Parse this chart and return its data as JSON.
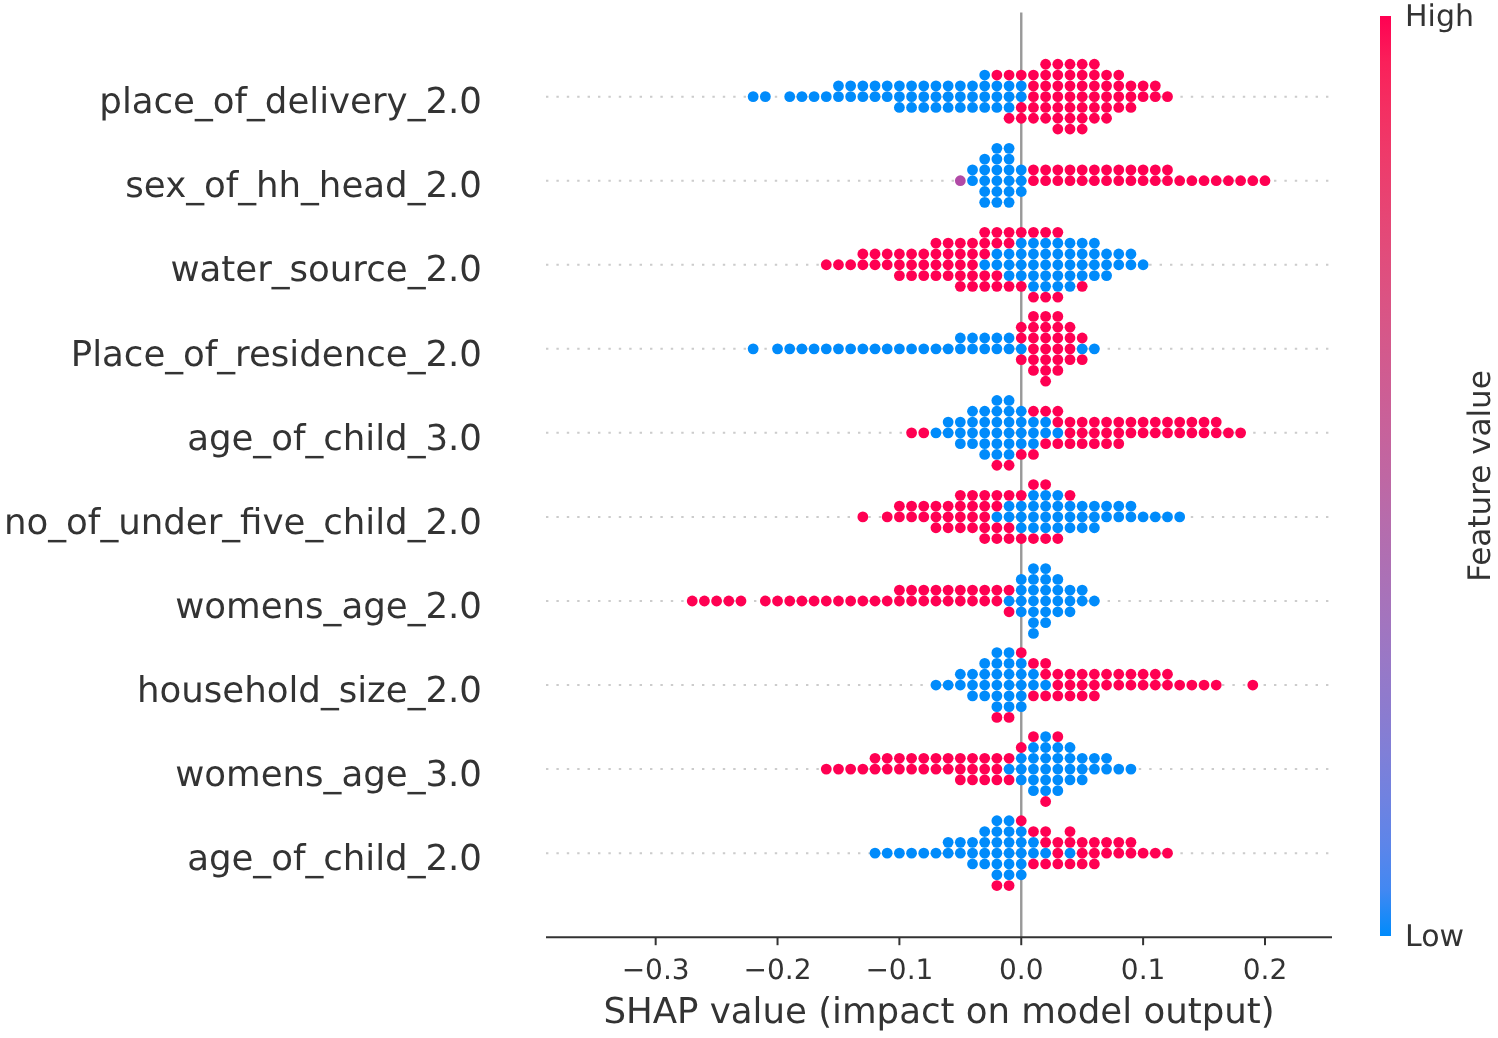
{
  "chart_data": {
    "type": "scatter",
    "orientation": "horizontal",
    "categories": [
      "place_of_delivery_2.0",
      "sex_of_hh_head_2.0",
      "water_source_2.0",
      "Place_of_residence_2.0",
      "age_of_child_3.0",
      "no_of_under_five_child_2.0",
      "womens_age_2.0",
      "household_size_2.0",
      "womens_age_3.0",
      "age_of_child_2.0"
    ],
    "xlabel": "SHAP value (impact on model output)",
    "clabel": "Feature value",
    "xlim": [
      -0.39,
      0.255
    ],
    "xticks": [
      {
        "value": -0.3,
        "label": "−0.3"
      },
      {
        "value": -0.2,
        "label": "−0.2"
      },
      {
        "value": -0.1,
        "label": "−0.1"
      },
      {
        "value": 0,
        "label": "0.0"
      },
      {
        "value": 0.1,
        "label": "0.1"
      },
      {
        "value": 0.2,
        "label": "0.2"
      }
    ],
    "clim": [
      0,
      1
    ],
    "cticks": [
      {
        "value": 0,
        "label": "Low"
      },
      {
        "value": 1,
        "label": "High"
      }
    ],
    "grid": "y",
    "ref_lines": [
      {
        "axis": "x",
        "value": 0,
        "color": "#999999"
      }
    ],
    "series": [
      {
        "color": "#008bfb",
        "x": [
          "place_of_delivery_2.0",
          "place_of_delivery_2.0",
          "place_of_delivery_2.0",
          "place_of_delivery_2.0",
          "place_of_delivery_2.0",
          "place_of_delivery_2.0",
          "place_of_delivery_2.0",
          "place_of_delivery_2.0",
          "place_of_delivery_2.0",
          "place_of_delivery_2.0",
          "place_of_delivery_2.0",
          "place_of_delivery_2.0",
          "place_of_delivery_2.0",
          "place_of_delivery_2.0",
          "place_of_delivery_2.0",
          "place_of_delivery_2.0",
          "place_of_delivery_2.0",
          "place_of_delivery_2.0",
          "place_of_delivery_2.0",
          "place_of_delivery_2.0",
          "place_of_delivery_2.0",
          "place_of_delivery_2.0",
          "place_of_delivery_2.0",
          "place_of_delivery_2.0",
          "place_of_delivery_2.0",
          "place_of_delivery_2.0",
          "place_of_delivery_2.0",
          "place_of_delivery_2.0",
          "place_of_delivery_2.0",
          "place_of_delivery_2.0",
          "place_of_delivery_2.0",
          "place_of_delivery_2.0",
          "place_of_delivery_2.0",
          "place_of_delivery_2.0",
          "place_of_delivery_2.0",
          "place_of_delivery_2.0",
          "place_of_delivery_2.0",
          "place_of_delivery_2.0",
          "place_of_delivery_2.0",
          "place_of_delivery_2.0",
          "place_of_delivery_2.0",
          "place_of_delivery_2.0",
          "place_of_delivery_2.0",
          "place_of_delivery_2.0",
          "place_of_delivery_2.0",
          "place_of_delivery_2.0",
          "place_of_delivery_2.0",
          "place_of_delivery_2.0",
          "place_of_delivery_2.0"
        ],
        "values": [
          -0.22,
          -0.21,
          -0.19,
          -0.18,
          -0.17,
          -0.16,
          -0.15,
          -0.15,
          -0.14,
          -0.14,
          -0.13,
          -0.13,
          -0.12,
          -0.12,
          -0.11,
          -0.11,
          -0.1,
          -0.1,
          -0.1,
          -0.09,
          -0.09,
          -0.09,
          -0.08,
          -0.08,
          -0.08,
          -0.07,
          -0.07,
          -0.07,
          -0.06,
          -0.06,
          -0.06,
          -0.05,
          -0.05,
          -0.05,
          -0.04,
          -0.04,
          -0.04,
          -0.03,
          -0.03,
          -0.03,
          -0.03,
          -0.02,
          -0.02,
          -0.02,
          -0.01,
          -0.01,
          -0.01,
          0,
          0
        ]
      },
      {
        "color": "#ff0052",
        "x": [
          "place_of_delivery_2.0",
          "place_of_delivery_2.0",
          "place_of_delivery_2.0",
          "place_of_delivery_2.0",
          "place_of_delivery_2.0",
          "place_of_delivery_2.0",
          "place_of_delivery_2.0",
          "place_of_delivery_2.0",
          "place_of_delivery_2.0",
          "place_of_delivery_2.0",
          "place_of_delivery_2.0",
          "place_of_delivery_2.0",
          "place_of_delivery_2.0",
          "place_of_delivery_2.0",
          "place_of_delivery_2.0",
          "place_of_delivery_2.0",
          "place_of_delivery_2.0",
          "place_of_delivery_2.0",
          "place_of_delivery_2.0",
          "place_of_delivery_2.0",
          "place_of_delivery_2.0",
          "place_of_delivery_2.0",
          "place_of_delivery_2.0",
          "place_of_delivery_2.0",
          "place_of_delivery_2.0",
          "place_of_delivery_2.0",
          "place_of_delivery_2.0",
          "place_of_delivery_2.0",
          "place_of_delivery_2.0",
          "place_of_delivery_2.0",
          "place_of_delivery_2.0",
          "place_of_delivery_2.0",
          "place_of_delivery_2.0",
          "place_of_delivery_2.0",
          "place_of_delivery_2.0",
          "place_of_delivery_2.0",
          "place_of_delivery_2.0",
          "place_of_delivery_2.0",
          "place_of_delivery_2.0",
          "place_of_delivery_2.0",
          "place_of_delivery_2.0",
          "place_of_delivery_2.0",
          "place_of_delivery_2.0",
          "place_of_delivery_2.0",
          "place_of_delivery_2.0",
          "place_of_delivery_2.0",
          "place_of_delivery_2.0",
          "place_of_delivery_2.0",
          "place_of_delivery_2.0",
          "place_of_delivery_2.0",
          "place_of_delivery_2.0",
          "place_of_delivery_2.0",
          "place_of_delivery_2.0",
          "place_of_delivery_2.0",
          "place_of_delivery_2.0",
          "place_of_delivery_2.0",
          "place_of_delivery_2.0",
          "place_of_delivery_2.0",
          "place_of_delivery_2.0",
          "place_of_delivery_2.0",
          "place_of_delivery_2.0"
        ],
        "values": [
          -0.02,
          -0.01,
          -0.01,
          0,
          0,
          0,
          0.01,
          0.01,
          0.01,
          0.01,
          0.01,
          0.02,
          0.02,
          0.02,
          0.02,
          0.02,
          0.02,
          0.03,
          0.03,
          0.03,
          0.03,
          0.03,
          0.03,
          0.03,
          0.04,
          0.04,
          0.04,
          0.04,
          0.04,
          0.04,
          0.04,
          0.05,
          0.05,
          0.05,
          0.05,
          0.05,
          0.05,
          0.05,
          0.06,
          0.06,
          0.06,
          0.06,
          0.06,
          0.06,
          0.07,
          0.07,
          0.07,
          0.07,
          0.07,
          0.08,
          0.08,
          0.08,
          0.08,
          0.09,
          0.09,
          0.09,
          0.1,
          0.1,
          0.11,
          0.11,
          0.12
        ]
      },
      {
        "color": "#008bfb",
        "x": [
          "sex_of_hh_head_2.0",
          "sex_of_hh_head_2.0",
          "sex_of_hh_head_2.0",
          "sex_of_hh_head_2.0",
          "sex_of_hh_head_2.0",
          "sex_of_hh_head_2.0",
          "sex_of_hh_head_2.0",
          "sex_of_hh_head_2.0",
          "sex_of_hh_head_2.0",
          "sex_of_hh_head_2.0",
          "sex_of_hh_head_2.0",
          "sex_of_hh_head_2.0",
          "sex_of_hh_head_2.0",
          "sex_of_hh_head_2.0",
          "sex_of_hh_head_2.0",
          "sex_of_hh_head_2.0",
          "sex_of_hh_head_2.0",
          "sex_of_hh_head_2.0",
          "sex_of_hh_head_2.0",
          "sex_of_hh_head_2.0",
          "sex_of_hh_head_2.0",
          "sex_of_hh_head_2.0"
        ],
        "values": [
          -0.04,
          -0.04,
          -0.03,
          -0.03,
          -0.03,
          -0.03,
          -0.03,
          -0.02,
          -0.02,
          -0.02,
          -0.02,
          -0.02,
          -0.02,
          -0.01,
          -0.01,
          -0.01,
          -0.01,
          -0.01,
          -0.01,
          0,
          0,
          0
        ]
      },
      {
        "color": "#b14aa6",
        "x": [
          "sex_of_hh_head_2.0"
        ],
        "values": [
          -0.05
        ]
      },
      {
        "color": "#ff0052",
        "x": [
          "sex_of_hh_head_2.0",
          "sex_of_hh_head_2.0",
          "sex_of_hh_head_2.0",
          "sex_of_hh_head_2.0",
          "sex_of_hh_head_2.0",
          "sex_of_hh_head_2.0",
          "sex_of_hh_head_2.0",
          "sex_of_hh_head_2.0",
          "sex_of_hh_head_2.0",
          "sex_of_hh_head_2.0",
          "sex_of_hh_head_2.0",
          "sex_of_hh_head_2.0",
          "sex_of_hh_head_2.0",
          "sex_of_hh_head_2.0",
          "sex_of_hh_head_2.0",
          "sex_of_hh_head_2.0",
          "sex_of_hh_head_2.0",
          "sex_of_hh_head_2.0",
          "sex_of_hh_head_2.0",
          "sex_of_hh_head_2.0",
          "sex_of_hh_head_2.0",
          "sex_of_hh_head_2.0",
          "sex_of_hh_head_2.0",
          "sex_of_hh_head_2.0",
          "sex_of_hh_head_2.0",
          "sex_of_hh_head_2.0",
          "sex_of_hh_head_2.0",
          "sex_of_hh_head_2.0",
          "sex_of_hh_head_2.0",
          "sex_of_hh_head_2.0",
          "sex_of_hh_head_2.0",
          "sex_of_hh_head_2.0"
        ],
        "values": [
          0.01,
          0.01,
          0.02,
          0.02,
          0.03,
          0.03,
          0.04,
          0.04,
          0.05,
          0.05,
          0.06,
          0.06,
          0.07,
          0.07,
          0.08,
          0.08,
          0.09,
          0.09,
          0.1,
          0.1,
          0.11,
          0.11,
          0.12,
          0.12,
          0.13,
          0.14,
          0.15,
          0.16,
          0.17,
          0.18,
          0.19,
          0.2
        ]
      },
      {
        "color": "#008bfb",
        "x": [
          "water_source_2.0",
          "water_source_2.0",
          "water_source_2.0",
          "water_source_2.0",
          "water_source_2.0",
          "water_source_2.0",
          "water_source_2.0",
          "water_source_2.0",
          "water_source_2.0",
          "water_source_2.0",
          "water_source_2.0",
          "water_source_2.0",
          "water_source_2.0",
          "water_source_2.0",
          "water_source_2.0",
          "water_source_2.0",
          "water_source_2.0",
          "water_source_2.0",
          "water_source_2.0",
          "water_source_2.0",
          "water_source_2.0",
          "water_source_2.0",
          "water_source_2.0",
          "water_source_2.0",
          "water_source_2.0",
          "water_source_2.0",
          "water_source_2.0",
          "water_source_2.0",
          "water_source_2.0",
          "water_source_2.0",
          "water_source_2.0",
          "water_source_2.0",
          "water_source_2.0",
          "water_source_2.0",
          "water_source_2.0",
          "water_source_2.0",
          "water_source_2.0",
          "water_source_2.0",
          "water_source_2.0",
          "water_source_2.0",
          "water_source_2.0",
          "water_source_2.0",
          "water_source_2.0",
          "water_source_2.0",
          "water_source_2.0",
          "water_source_2.0"
        ],
        "values": [
          -0.03,
          -0.02,
          -0.02,
          -0.01,
          -0.01,
          -0.01,
          0,
          0,
          0,
          0,
          0.01,
          0.01,
          0.01,
          0.01,
          0.01,
          0.02,
          0.02,
          0.02,
          0.02,
          0.02,
          0.03,
          0.03,
          0.03,
          0.03,
          0.03,
          0.04,
          0.04,
          0.04,
          0.04,
          0.04,
          0.05,
          0.05,
          0.05,
          0.05,
          0.06,
          0.06,
          0.06,
          0.06,
          0.07,
          0.07,
          0.07,
          0.08,
          0.08,
          0.09,
          0.09,
          0.1
        ]
      },
      {
        "color": "#ff0052",
        "x": [
          "water_source_2.0",
          "water_source_2.0",
          "water_source_2.0",
          "water_source_2.0",
          "water_source_2.0",
          "water_source_2.0",
          "water_source_2.0",
          "water_source_2.0",
          "water_source_2.0",
          "water_source_2.0",
          "water_source_2.0",
          "water_source_2.0",
          "water_source_2.0",
          "water_source_2.0",
          "water_source_2.0",
          "water_source_2.0",
          "water_source_2.0",
          "water_source_2.0",
          "water_source_2.0",
          "water_source_2.0",
          "water_source_2.0",
          "water_source_2.0",
          "water_source_2.0",
          "water_source_2.0",
          "water_source_2.0",
          "water_source_2.0",
          "water_source_2.0",
          "water_source_2.0",
          "water_source_2.0",
          "water_source_2.0",
          "water_source_2.0",
          "water_source_2.0",
          "water_source_2.0",
          "water_source_2.0",
          "water_source_2.0",
          "water_source_2.0",
          "water_source_2.0",
          "water_source_2.0",
          "water_source_2.0",
          "water_source_2.0",
          "water_source_2.0",
          "water_source_2.0",
          "water_source_2.0",
          "water_source_2.0",
          "water_source_2.0",
          "water_source_2.0",
          "water_source_2.0",
          "water_source_2.0",
          "water_source_2.0",
          "water_source_2.0",
          "water_source_2.0",
          "water_source_2.0",
          "water_source_2.0",
          "water_source_2.0",
          "water_source_2.0",
          "water_source_2.0",
          "water_source_2.0"
        ],
        "values": [
          -0.16,
          -0.15,
          -0.14,
          -0.13,
          -0.13,
          -0.12,
          -0.12,
          -0.11,
          -0.11,
          -0.1,
          -0.1,
          -0.1,
          -0.09,
          -0.09,
          -0.09,
          -0.08,
          -0.08,
          -0.08,
          -0.07,
          -0.07,
          -0.07,
          -0.07,
          -0.06,
          -0.06,
          -0.06,
          -0.06,
          -0.05,
          -0.05,
          -0.05,
          -0.05,
          -0.05,
          -0.04,
          -0.04,
          -0.04,
          -0.04,
          -0.04,
          -0.03,
          -0.03,
          -0.03,
          -0.03,
          -0.03,
          -0.02,
          -0.02,
          -0.02,
          -0.02,
          -0.01,
          -0.01,
          -0.01,
          0,
          0,
          0.01,
          0.01,
          0.02,
          0.02,
          0.03,
          0.03,
          0.05
        ]
      },
      {
        "color": "#008bfb",
        "x": [
          "Place_of_residence_2.0",
          "Place_of_residence_2.0",
          "Place_of_residence_2.0",
          "Place_of_residence_2.0",
          "Place_of_residence_2.0",
          "Place_of_residence_2.0",
          "Place_of_residence_2.0",
          "Place_of_residence_2.0",
          "Place_of_residence_2.0",
          "Place_of_residence_2.0",
          "Place_of_residence_2.0",
          "Place_of_residence_2.0",
          "Place_of_residence_2.0",
          "Place_of_residence_2.0",
          "Place_of_residence_2.0",
          "Place_of_residence_2.0",
          "Place_of_residence_2.0",
          "Place_of_residence_2.0",
          "Place_of_residence_2.0",
          "Place_of_residence_2.0",
          "Place_of_residence_2.0",
          "Place_of_residence_2.0",
          "Place_of_residence_2.0",
          "Place_of_residence_2.0",
          "Place_of_residence_2.0",
          "Place_of_residence_2.0",
          "Place_of_residence_2.0",
          "Place_of_residence_2.0",
          "Place_of_residence_2.0"
        ],
        "values": [
          -0.22,
          -0.2,
          -0.19,
          -0.18,
          -0.17,
          -0.16,
          -0.15,
          -0.14,
          -0.13,
          -0.12,
          -0.11,
          -0.1,
          -0.09,
          -0.08,
          -0.07,
          -0.06,
          -0.05,
          -0.05,
          -0.04,
          -0.04,
          -0.03,
          -0.03,
          -0.02,
          -0.02,
          -0.01,
          -0.01,
          0,
          0.05,
          0.06
        ]
      },
      {
        "color": "#ff0052",
        "x": [
          "Place_of_residence_2.0",
          "Place_of_residence_2.0",
          "Place_of_residence_2.0",
          "Place_of_residence_2.0",
          "Place_of_residence_2.0",
          "Place_of_residence_2.0",
          "Place_of_residence_2.0",
          "Place_of_residence_2.0",
          "Place_of_residence_2.0",
          "Place_of_residence_2.0",
          "Place_of_residence_2.0",
          "Place_of_residence_2.0",
          "Place_of_residence_2.0",
          "Place_of_residence_2.0",
          "Place_of_residence_2.0",
          "Place_of_residence_2.0",
          "Place_of_residence_2.0",
          "Place_of_residence_2.0",
          "Place_of_residence_2.0",
          "Place_of_residence_2.0",
          "Place_of_residence_2.0",
          "Place_of_residence_2.0",
          "Place_of_residence_2.0",
          "Place_of_residence_2.0",
          "Place_of_residence_2.0",
          "Place_of_residence_2.0",
          "Place_of_residence_2.0",
          "Place_of_residence_2.0"
        ],
        "values": [
          0,
          0,
          0,
          0.01,
          0.01,
          0.01,
          0.01,
          0.01,
          0.01,
          0.02,
          0.02,
          0.02,
          0.02,
          0.02,
          0.02,
          0.02,
          0.03,
          0.03,
          0.03,
          0.03,
          0.03,
          0.03,
          0.04,
          0.04,
          0.04,
          0.04,
          0.05,
          0.05
        ]
      },
      {
        "color": "#008bfb",
        "x": [
          "age_of_child_3.0",
          "age_of_child_3.0",
          "age_of_child_3.0",
          "age_of_child_3.0",
          "age_of_child_3.0",
          "age_of_child_3.0",
          "age_of_child_3.0",
          "age_of_child_3.0",
          "age_of_child_3.0",
          "age_of_child_3.0",
          "age_of_child_3.0",
          "age_of_child_3.0",
          "age_of_child_3.0",
          "age_of_child_3.0",
          "age_of_child_3.0",
          "age_of_child_3.0",
          "age_of_child_3.0",
          "age_of_child_3.0",
          "age_of_child_3.0",
          "age_of_child_3.0",
          "age_of_child_3.0",
          "age_of_child_3.0",
          "age_of_child_3.0",
          "age_of_child_3.0",
          "age_of_child_3.0",
          "age_of_child_3.0",
          "age_of_child_3.0",
          "age_of_child_3.0",
          "age_of_child_3.0",
          "age_of_child_3.0",
          "age_of_child_3.0",
          "age_of_child_3.0",
          "age_of_child_3.0",
          "age_of_child_3.0",
          "age_of_child_3.0",
          "age_of_child_3.0",
          "age_of_child_3.0"
        ],
        "values": [
          -0.07,
          -0.06,
          -0.06,
          -0.05,
          -0.05,
          -0.05,
          -0.04,
          -0.04,
          -0.04,
          -0.04,
          -0.03,
          -0.03,
          -0.03,
          -0.03,
          -0.03,
          -0.02,
          -0.02,
          -0.02,
          -0.02,
          -0.02,
          -0.02,
          -0.01,
          -0.01,
          -0.01,
          -0.01,
          -0.01,
          -0.01,
          0,
          0,
          0,
          0,
          0.01,
          0.01,
          0.01,
          0.02,
          0.02,
          0.03
        ]
      },
      {
        "color": "#ff0052",
        "x": [
          "age_of_child_3.0",
          "age_of_child_3.0",
          "age_of_child_3.0",
          "age_of_child_3.0",
          "age_of_child_3.0",
          "age_of_child_3.0",
          "age_of_child_3.0",
          "age_of_child_3.0",
          "age_of_child_3.0",
          "age_of_child_3.0",
          "age_of_child_3.0",
          "age_of_child_3.0",
          "age_of_child_3.0",
          "age_of_child_3.0",
          "age_of_child_3.0",
          "age_of_child_3.0",
          "age_of_child_3.0",
          "age_of_child_3.0",
          "age_of_child_3.0",
          "age_of_child_3.0",
          "age_of_child_3.0",
          "age_of_child_3.0",
          "age_of_child_3.0",
          "age_of_child_3.0",
          "age_of_child_3.0",
          "age_of_child_3.0",
          "age_of_child_3.0",
          "age_of_child_3.0",
          "age_of_child_3.0",
          "age_of_child_3.0",
          "age_of_child_3.0",
          "age_of_child_3.0",
          "age_of_child_3.0",
          "age_of_child_3.0",
          "age_of_child_3.0",
          "age_of_child_3.0",
          "age_of_child_3.0",
          "age_of_child_3.0",
          "age_of_child_3.0",
          "age_of_child_3.0",
          "age_of_child_3.0",
          "age_of_child_3.0",
          "age_of_child_3.0",
          "age_of_child_3.0",
          "age_of_child_3.0"
        ],
        "values": [
          -0.09,
          -0.08,
          -0.02,
          -0.01,
          0,
          0.01,
          0.01,
          0.02,
          0.02,
          0.03,
          0.03,
          0.03,
          0.04,
          0.04,
          0.04,
          0.05,
          0.05,
          0.05,
          0.06,
          0.06,
          0.06,
          0.07,
          0.07,
          0.07,
          0.08,
          0.08,
          0.08,
          0.09,
          0.09,
          0.1,
          0.1,
          0.11,
          0.11,
          0.12,
          0.12,
          0.13,
          0.13,
          0.14,
          0.14,
          0.15,
          0.15,
          0.16,
          0.16,
          0.17,
          0.18
        ]
      },
      {
        "color": "#008bfb",
        "x": [
          "no_of_under_five_child_2.0",
          "no_of_under_five_child_2.0",
          "no_of_under_five_child_2.0",
          "no_of_under_five_child_2.0",
          "no_of_under_five_child_2.0",
          "no_of_under_five_child_2.0",
          "no_of_under_five_child_2.0",
          "no_of_under_five_child_2.0",
          "no_of_under_five_child_2.0",
          "no_of_under_five_child_2.0",
          "no_of_under_five_child_2.0",
          "no_of_under_five_child_2.0",
          "no_of_under_five_child_2.0",
          "no_of_under_five_child_2.0",
          "no_of_under_five_child_2.0",
          "no_of_under_five_child_2.0",
          "no_of_under_five_child_2.0",
          "no_of_under_five_child_2.0",
          "no_of_under_five_child_2.0",
          "no_of_under_five_child_2.0",
          "no_of_under_five_child_2.0",
          "no_of_under_five_child_2.0",
          "no_of_under_five_child_2.0",
          "no_of_under_five_child_2.0",
          "no_of_under_five_child_2.0",
          "no_of_under_five_child_2.0",
          "no_of_under_five_child_2.0",
          "no_of_under_five_child_2.0",
          "no_of_under_five_child_2.0",
          "no_of_under_five_child_2.0",
          "no_of_under_five_child_2.0",
          "no_of_under_five_child_2.0",
          "no_of_under_five_child_2.0",
          "no_of_under_five_child_2.0",
          "no_of_under_five_child_2.0",
          "no_of_under_five_child_2.0",
          "no_of_under_five_child_2.0"
        ],
        "values": [
          -0.02,
          -0.01,
          -0.01,
          0,
          0,
          0,
          0.01,
          0.01,
          0.01,
          0.01,
          0.02,
          0.02,
          0.02,
          0.02,
          0.03,
          0.03,
          0.03,
          0.03,
          0.04,
          0.04,
          0.04,
          0.05,
          0.05,
          0.05,
          0.06,
          0.06,
          0.06,
          0.07,
          0.07,
          0.08,
          0.08,
          0.09,
          0.09,
          0.1,
          0.11,
          0.12,
          0.13
        ]
      },
      {
        "color": "#ff0052",
        "x": [
          "no_of_under_five_child_2.0",
          "no_of_under_five_child_2.0",
          "no_of_under_five_child_2.0",
          "no_of_under_five_child_2.0",
          "no_of_under_five_child_2.0",
          "no_of_under_five_child_2.0",
          "no_of_under_five_child_2.0",
          "no_of_under_five_child_2.0",
          "no_of_under_five_child_2.0",
          "no_of_under_five_child_2.0",
          "no_of_under_five_child_2.0",
          "no_of_under_five_child_2.0",
          "no_of_under_five_child_2.0",
          "no_of_under_five_child_2.0",
          "no_of_under_five_child_2.0",
          "no_of_under_five_child_2.0",
          "no_of_under_five_child_2.0",
          "no_of_under_five_child_2.0",
          "no_of_under_five_child_2.0",
          "no_of_under_five_child_2.0",
          "no_of_under_five_child_2.0",
          "no_of_under_five_child_2.0",
          "no_of_under_five_child_2.0",
          "no_of_under_five_child_2.0",
          "no_of_under_five_child_2.0",
          "no_of_under_five_child_2.0",
          "no_of_under_five_child_2.0",
          "no_of_under_five_child_2.0",
          "no_of_under_five_child_2.0",
          "no_of_under_five_child_2.0",
          "no_of_under_five_child_2.0",
          "no_of_under_five_child_2.0",
          "no_of_under_five_child_2.0",
          "no_of_under_five_child_2.0",
          "no_of_under_five_child_2.0",
          "no_of_under_five_child_2.0",
          "no_of_under_five_child_2.0",
          "no_of_under_five_child_2.0",
          "no_of_under_five_child_2.0",
          "no_of_under_five_child_2.0",
          "no_of_under_five_child_2.0",
          "no_of_under_five_child_2.0"
        ],
        "values": [
          -0.13,
          -0.11,
          -0.1,
          -0.1,
          -0.09,
          -0.09,
          -0.08,
          -0.08,
          -0.07,
          -0.07,
          -0.07,
          -0.06,
          -0.06,
          -0.06,
          -0.05,
          -0.05,
          -0.05,
          -0.05,
          -0.04,
          -0.04,
          -0.04,
          -0.04,
          -0.03,
          -0.03,
          -0.03,
          -0.03,
          -0.03,
          -0.02,
          -0.02,
          -0.02,
          -0.02,
          -0.01,
          -0.01,
          -0.01,
          0,
          0,
          0.01,
          0.01,
          0.02,
          0.02,
          0.03,
          0.04
        ]
      },
      {
        "color": "#008bfb",
        "x": [
          "womens_age_2.0",
          "womens_age_2.0",
          "womens_age_2.0",
          "womens_age_2.0",
          "womens_age_2.0",
          "womens_age_2.0",
          "womens_age_2.0",
          "womens_age_2.0",
          "womens_age_2.0",
          "womens_age_2.0",
          "womens_age_2.0",
          "womens_age_2.0",
          "womens_age_2.0",
          "womens_age_2.0",
          "womens_age_2.0",
          "womens_age_2.0",
          "womens_age_2.0",
          "womens_age_2.0",
          "womens_age_2.0",
          "womens_age_2.0",
          "womens_age_2.0",
          "womens_age_2.0",
          "womens_age_2.0",
          "womens_age_2.0",
          "womens_age_2.0",
          "womens_age_2.0",
          "womens_age_2.0",
          "womens_age_2.0"
        ],
        "values": [
          -0.01,
          0,
          0,
          0,
          0,
          0.01,
          0.01,
          0.01,
          0.01,
          0.01,
          0.01,
          0.01,
          0.02,
          0.02,
          0.02,
          0.02,
          0.02,
          0.02,
          0.03,
          0.03,
          0.03,
          0.03,
          0.04,
          0.04,
          0.04,
          0.05,
          0.05,
          0.06
        ]
      },
      {
        "color": "#ff0052",
        "x": [
          "womens_age_2.0",
          "womens_age_2.0",
          "womens_age_2.0",
          "womens_age_2.0",
          "womens_age_2.0",
          "womens_age_2.0",
          "womens_age_2.0",
          "womens_age_2.0",
          "womens_age_2.0",
          "womens_age_2.0",
          "womens_age_2.0",
          "womens_age_2.0",
          "womens_age_2.0",
          "womens_age_2.0",
          "womens_age_2.0",
          "womens_age_2.0",
          "womens_age_2.0",
          "womens_age_2.0",
          "womens_age_2.0",
          "womens_age_2.0",
          "womens_age_2.0",
          "womens_age_2.0",
          "womens_age_2.0",
          "womens_age_2.0",
          "womens_age_2.0",
          "womens_age_2.0",
          "womens_age_2.0",
          "womens_age_2.0",
          "womens_age_2.0",
          "womens_age_2.0",
          "womens_age_2.0",
          "womens_age_2.0",
          "womens_age_2.0",
          "womens_age_2.0",
          "womens_age_2.0",
          "womens_age_2.0"
        ],
        "values": [
          -0.27,
          -0.26,
          -0.25,
          -0.24,
          -0.23,
          -0.21,
          -0.2,
          -0.19,
          -0.18,
          -0.17,
          -0.16,
          -0.15,
          -0.14,
          -0.13,
          -0.12,
          -0.11,
          -0.1,
          -0.1,
          -0.09,
          -0.09,
          -0.08,
          -0.08,
          -0.07,
          -0.07,
          -0.06,
          -0.06,
          -0.05,
          -0.05,
          -0.04,
          -0.04,
          -0.03,
          -0.03,
          -0.02,
          -0.02,
          -0.01,
          -0.01
        ]
      },
      {
        "color": "#008bfb",
        "x": [
          "household_size_2.0",
          "household_size_2.0",
          "household_size_2.0",
          "household_size_2.0",
          "household_size_2.0",
          "household_size_2.0",
          "household_size_2.0",
          "household_size_2.0",
          "household_size_2.0",
          "household_size_2.0",
          "household_size_2.0",
          "household_size_2.0",
          "household_size_2.0",
          "household_size_2.0",
          "household_size_2.0",
          "household_size_2.0",
          "household_size_2.0",
          "household_size_2.0",
          "household_size_2.0",
          "household_size_2.0",
          "household_size_2.0",
          "household_size_2.0",
          "household_size_2.0",
          "household_size_2.0",
          "household_size_2.0",
          "household_size_2.0",
          "household_size_2.0",
          "household_size_2.0",
          "household_size_2.0",
          "household_size_2.0",
          "household_size_2.0"
        ],
        "values": [
          -0.07,
          -0.06,
          -0.05,
          -0.05,
          -0.04,
          -0.04,
          -0.04,
          -0.03,
          -0.03,
          -0.03,
          -0.03,
          -0.02,
          -0.02,
          -0.02,
          -0.02,
          -0.02,
          -0.02,
          -0.01,
          -0.01,
          -0.01,
          -0.01,
          -0.01,
          -0.01,
          0,
          0,
          0,
          0,
          0,
          0.01,
          0.01,
          0.02
        ]
      },
      {
        "color": "#ff0052",
        "x": [
          "household_size_2.0",
          "household_size_2.0",
          "household_size_2.0",
          "household_size_2.0",
          "household_size_2.0",
          "household_size_2.0",
          "household_size_2.0",
          "household_size_2.0",
          "household_size_2.0",
          "household_size_2.0",
          "household_size_2.0",
          "household_size_2.0",
          "household_size_2.0",
          "household_size_2.0",
          "household_size_2.0",
          "household_size_2.0",
          "household_size_2.0",
          "household_size_2.0",
          "household_size_2.0",
          "household_size_2.0",
          "household_size_2.0",
          "household_size_2.0",
          "household_size_2.0",
          "household_size_2.0",
          "household_size_2.0",
          "household_size_2.0",
          "household_size_2.0",
          "household_size_2.0",
          "household_size_2.0",
          "household_size_2.0",
          "household_size_2.0",
          "household_size_2.0",
          "household_size_2.0",
          "household_size_2.0",
          "household_size_2.0",
          "household_size_2.0",
          "household_size_2.0"
        ],
        "values": [
          -0.02,
          -0.01,
          0,
          0.01,
          0.01,
          0.02,
          0.02,
          0.02,
          0.03,
          0.03,
          0.03,
          0.04,
          0.04,
          0.04,
          0.05,
          0.05,
          0.05,
          0.06,
          0.06,
          0.06,
          0.07,
          0.07,
          0.08,
          0.08,
          0.09,
          0.09,
          0.1,
          0.1,
          0.11,
          0.11,
          0.12,
          0.12,
          0.13,
          0.14,
          0.15,
          0.16,
          0.19
        ]
      },
      {
        "color": "#008bfb",
        "x": [
          "womens_age_3.0",
          "womens_age_3.0",
          "womens_age_3.0",
          "womens_age_3.0",
          "womens_age_3.0",
          "womens_age_3.0",
          "womens_age_3.0",
          "womens_age_3.0",
          "womens_age_3.0",
          "womens_age_3.0",
          "womens_age_3.0",
          "womens_age_3.0",
          "womens_age_3.0",
          "womens_age_3.0",
          "womens_age_3.0",
          "womens_age_3.0",
          "womens_age_3.0",
          "womens_age_3.0",
          "womens_age_3.0",
          "womens_age_3.0",
          "womens_age_3.0",
          "womens_age_3.0",
          "womens_age_3.0",
          "womens_age_3.0",
          "womens_age_3.0",
          "womens_age_3.0",
          "womens_age_3.0",
          "womens_age_3.0",
          "womens_age_3.0",
          "womens_age_3.0",
          "womens_age_3.0",
          "womens_age_3.0",
          "womens_age_3.0"
        ],
        "values": [
          -0.01,
          0,
          0,
          0,
          0.01,
          0.01,
          0.01,
          0.01,
          0.01,
          0.02,
          0.02,
          0.02,
          0.02,
          0.02,
          0.02,
          0.03,
          0.03,
          0.03,
          0.03,
          0.03,
          0.04,
          0.04,
          0.04,
          0.04,
          0.05,
          0.05,
          0.05,
          0.06,
          0.06,
          0.07,
          0.07,
          0.08,
          0.09
        ]
      },
      {
        "color": "#ff0052",
        "x": [
          "womens_age_3.0",
          "womens_age_3.0",
          "womens_age_3.0",
          "womens_age_3.0",
          "womens_age_3.0",
          "womens_age_3.0",
          "womens_age_3.0",
          "womens_age_3.0",
          "womens_age_3.0",
          "womens_age_3.0",
          "womens_age_3.0",
          "womens_age_3.0",
          "womens_age_3.0",
          "womens_age_3.0",
          "womens_age_3.0",
          "womens_age_3.0",
          "womens_age_3.0",
          "womens_age_3.0",
          "womens_age_3.0",
          "womens_age_3.0",
          "womens_age_3.0",
          "womens_age_3.0",
          "womens_age_3.0",
          "womens_age_3.0",
          "womens_age_3.0",
          "womens_age_3.0",
          "womens_age_3.0",
          "womens_age_3.0",
          "womens_age_3.0",
          "womens_age_3.0",
          "womens_age_3.0",
          "womens_age_3.0",
          "womens_age_3.0",
          "womens_age_3.0",
          "womens_age_3.0",
          "womens_age_3.0"
        ],
        "values": [
          -0.16,
          -0.15,
          -0.14,
          -0.13,
          -0.12,
          -0.12,
          -0.11,
          -0.11,
          -0.1,
          -0.1,
          -0.09,
          -0.09,
          -0.08,
          -0.08,
          -0.07,
          -0.07,
          -0.06,
          -0.06,
          -0.05,
          -0.05,
          -0.05,
          -0.04,
          -0.04,
          -0.04,
          -0.03,
          -0.03,
          -0.03,
          -0.02,
          -0.02,
          -0.02,
          -0.01,
          -0.01,
          0,
          0.01,
          0.02,
          0.03
        ]
      },
      {
        "color": "#008bfb",
        "x": [
          "age_of_child_2.0",
          "age_of_child_2.0",
          "age_of_child_2.0",
          "age_of_child_2.0",
          "age_of_child_2.0",
          "age_of_child_2.0",
          "age_of_child_2.0",
          "age_of_child_2.0",
          "age_of_child_2.0",
          "age_of_child_2.0",
          "age_of_child_2.0",
          "age_of_child_2.0",
          "age_of_child_2.0",
          "age_of_child_2.0",
          "age_of_child_2.0",
          "age_of_child_2.0",
          "age_of_child_2.0",
          "age_of_child_2.0",
          "age_of_child_2.0",
          "age_of_child_2.0",
          "age_of_child_2.0",
          "age_of_child_2.0",
          "age_of_child_2.0",
          "age_of_child_2.0",
          "age_of_child_2.0",
          "age_of_child_2.0",
          "age_of_child_2.0",
          "age_of_child_2.0",
          "age_of_child_2.0",
          "age_of_child_2.0",
          "age_of_child_2.0",
          "age_of_child_2.0",
          "age_of_child_2.0",
          "age_of_child_2.0",
          "age_of_child_2.0",
          "age_of_child_2.0",
          "age_of_child_2.0",
          "age_of_child_2.0"
        ],
        "values": [
          -0.12,
          -0.11,
          -0.1,
          -0.09,
          -0.08,
          -0.07,
          -0.06,
          -0.06,
          -0.05,
          -0.05,
          -0.04,
          -0.04,
          -0.04,
          -0.03,
          -0.03,
          -0.03,
          -0.03,
          -0.02,
          -0.02,
          -0.02,
          -0.02,
          -0.02,
          -0.02,
          -0.01,
          -0.01,
          -0.01,
          -0.01,
          -0.01,
          -0.01,
          0,
          0,
          0,
          0,
          0,
          0.01,
          0.01,
          0.02,
          0.04
        ]
      },
      {
        "color": "#ff0052",
        "x": [
          "age_of_child_2.0",
          "age_of_child_2.0",
          "age_of_child_2.0",
          "age_of_child_2.0",
          "age_of_child_2.0",
          "age_of_child_2.0",
          "age_of_child_2.0",
          "age_of_child_2.0",
          "age_of_child_2.0",
          "age_of_child_2.0",
          "age_of_child_2.0",
          "age_of_child_2.0",
          "age_of_child_2.0",
          "age_of_child_2.0",
          "age_of_child_2.0",
          "age_of_child_2.0",
          "age_of_child_2.0",
          "age_of_child_2.0",
          "age_of_child_2.0",
          "age_of_child_2.0",
          "age_of_child_2.0",
          "age_of_child_2.0",
          "age_of_child_2.0",
          "age_of_child_2.0",
          "age_of_child_2.0",
          "age_of_child_2.0",
          "age_of_child_2.0",
          "age_of_child_2.0",
          "age_of_child_2.0"
        ],
        "values": [
          -0.02,
          -0.01,
          0,
          0.01,
          0.01,
          0.02,
          0.02,
          0.02,
          0.03,
          0.03,
          0.03,
          0.04,
          0.04,
          0.04,
          0.05,
          0.05,
          0.05,
          0.06,
          0.06,
          0.06,
          0.07,
          0.07,
          0.08,
          0.08,
          0.09,
          0.09,
          0.1,
          0.11,
          0.12
        ]
      }
    ]
  }
}
